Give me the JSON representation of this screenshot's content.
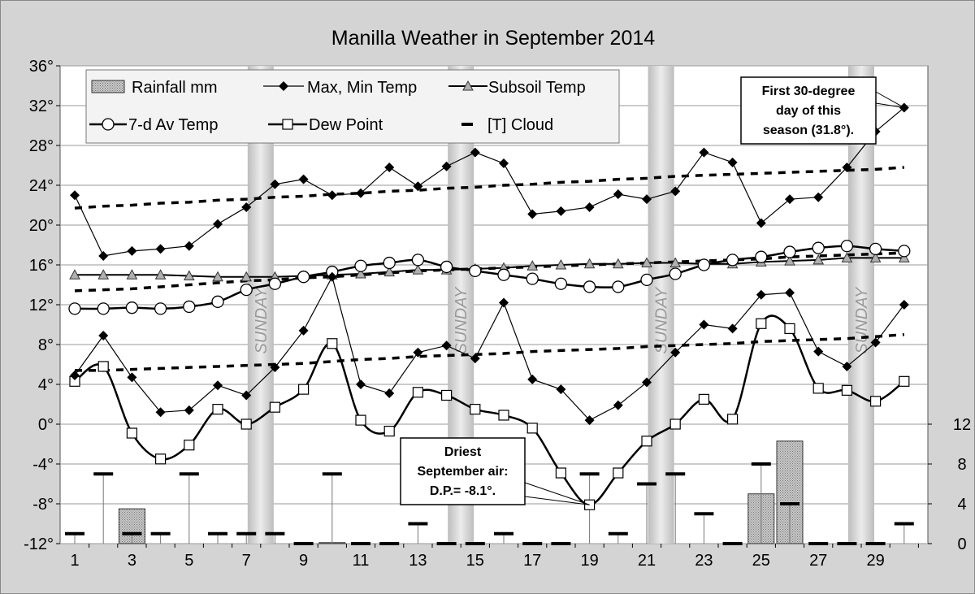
{
  "chart_data": {
    "type": "line",
    "title": "Manilla Weather in September 2014",
    "x": [
      1,
      2,
      3,
      4,
      5,
      6,
      7,
      8,
      9,
      10,
      11,
      12,
      13,
      14,
      15,
      16,
      17,
      18,
      19,
      20,
      21,
      22,
      23,
      24,
      25,
      26,
      27,
      28,
      29,
      30
    ],
    "x_ticks": [
      "1",
      "3",
      "5",
      "7",
      "9",
      "11",
      "13",
      "15",
      "17",
      "19",
      "21",
      "23",
      "25",
      "27",
      "29"
    ],
    "ylim": [
      -12,
      36
    ],
    "y_ticks": [
      "36°",
      "32°",
      "28°",
      "24°",
      "20°",
      "16°",
      "12°",
      "8°",
      "4°",
      "0°",
      "-4°",
      "-8°",
      "-12°"
    ],
    "y2lim": [
      0,
      12
    ],
    "y2_ticks": [
      "12",
      "8",
      "4",
      "0"
    ],
    "sundays": [
      7,
      14,
      21,
      28
    ],
    "sunday_label": "SUNDAY",
    "series": [
      {
        "name": "Max, Min Temp",
        "role": "max",
        "values": [
          23.0,
          16.9,
          17.4,
          17.6,
          17.9,
          20.1,
          21.8,
          24.1,
          24.6,
          23.0,
          23.2,
          25.8,
          23.9,
          25.9,
          27.3,
          26.2,
          21.1,
          21.4,
          21.8,
          23.1,
          22.6,
          23.4,
          27.3,
          26.3,
          20.2,
          22.6,
          22.8,
          25.8,
          29.4,
          31.8
        ]
      },
      {
        "name": "Max, Min Temp",
        "role": "min",
        "values": [
          4.9,
          8.9,
          4.7,
          1.2,
          1.4,
          3.9,
          2.9,
          5.7,
          9.4,
          14.8,
          4.0,
          3.1,
          7.2,
          7.9,
          6.6,
          12.2,
          4.5,
          3.5,
          0.4,
          1.9,
          4.2,
          7.2,
          10.0,
          9.6,
          13.0,
          13.2,
          7.3,
          5.8,
          8.2,
          12.0
        ]
      },
      {
        "name": "Subsoil Temp",
        "values": [
          15.0,
          15.0,
          15.0,
          15.0,
          14.9,
          14.8,
          14.8,
          14.8,
          14.9,
          15.0,
          15.1,
          15.3,
          15.5,
          15.5,
          15.6,
          15.7,
          15.9,
          16.0,
          16.1,
          16.1,
          16.2,
          16.2,
          16.1,
          16.1,
          16.3,
          16.4,
          16.5,
          16.7,
          16.7,
          16.7
        ]
      },
      {
        "name": "7-d Av Temp",
        "values": [
          11.6,
          11.6,
          11.7,
          11.6,
          11.8,
          12.3,
          13.5,
          14.1,
          14.8,
          15.3,
          15.9,
          16.2,
          16.5,
          15.8,
          15.4,
          15.0,
          14.6,
          14.1,
          13.8,
          13.8,
          14.5,
          15.1,
          16.0,
          16.5,
          16.8,
          17.3,
          17.7,
          17.9,
          17.6,
          17.4
        ]
      },
      {
        "name": "Dew Point",
        "values": [
          4.3,
          5.8,
          -0.9,
          -3.5,
          -2.1,
          1.5,
          0.0,
          1.7,
          3.5,
          8.1,
          0.4,
          -0.7,
          3.2,
          2.9,
          1.5,
          0.9,
          -0.4,
          -4.9,
          -8.1,
          -4.9,
          -1.7,
          0.0,
          2.5,
          0.5,
          10.1,
          9.6,
          3.6,
          3.4,
          2.3,
          4.3
        ]
      },
      {
        "name": "Rainfall mm",
        "axis": "right",
        "values": [
          0,
          0,
          3.5,
          0,
          0,
          0,
          0,
          0,
          0,
          0.1,
          0,
          0,
          0,
          0,
          0,
          0,
          0,
          0,
          0,
          0,
          0,
          0,
          0,
          0,
          5,
          10.3,
          0,
          0,
          0,
          0
        ]
      },
      {
        "name": "[T] Cloud",
        "axis": "right",
        "values": [
          1,
          7,
          1,
          1,
          7,
          1,
          1,
          1,
          0,
          7,
          0,
          0,
          2,
          0,
          0,
          1,
          0,
          0,
          7,
          1,
          6,
          7,
          3,
          0,
          8,
          4,
          0,
          0,
          0,
          2
        ]
      },
      {
        "name": "Mean Max trend",
        "legend": false,
        "values": [
          21.7,
          21.9,
          22.0,
          22.2,
          22.3,
          22.5,
          22.6,
          22.8,
          22.9,
          23.1,
          23.2,
          23.4,
          23.5,
          23.7,
          23.8,
          24.0,
          24.1,
          24.3,
          24.4,
          24.6,
          24.7,
          24.9,
          25.0,
          25.1,
          25.2,
          25.3,
          25.4,
          25.5,
          25.6,
          25.8
        ]
      },
      {
        "name": "Mean Temp trend",
        "legend": false,
        "values": [
          13.4,
          13.5,
          13.6,
          13.8,
          14.0,
          14.2,
          14.4,
          14.5,
          14.7,
          14.8,
          15.0,
          15.2,
          15.4,
          15.5,
          15.6,
          15.7,
          15.8,
          15.9,
          16.0,
          16.1,
          16.2,
          16.3,
          16.4,
          16.5,
          16.6,
          16.8,
          16.9,
          17.0,
          17.1,
          17.2
        ]
      },
      {
        "name": "Mean Min trend",
        "legend": false,
        "values": [
          5.4,
          5.4,
          5.5,
          5.6,
          5.7,
          5.8,
          5.9,
          6.0,
          6.1,
          6.3,
          6.5,
          6.6,
          6.8,
          6.9,
          7.0,
          7.1,
          7.3,
          7.4,
          7.5,
          7.6,
          7.8,
          7.9,
          8.0,
          8.1,
          8.3,
          8.4,
          8.5,
          8.6,
          8.8,
          9.0
        ]
      }
    ],
    "legend": [
      "Rainfall mm",
      "Max, Min Temp",
      "Subsoil Temp",
      "7-d Av Temp",
      "Dew Point",
      "[T] Cloud"
    ],
    "annotations": [
      {
        "lines": [
          "First 30-degree",
          "day of this",
          "season (31.8°)."
        ],
        "target_day": 30,
        "target_value": 31.8
      },
      {
        "lines": [
          "Driest",
          "September air:",
          "D.P.= -8.1°."
        ],
        "target_day": 19,
        "target_value": -8.1
      }
    ]
  }
}
